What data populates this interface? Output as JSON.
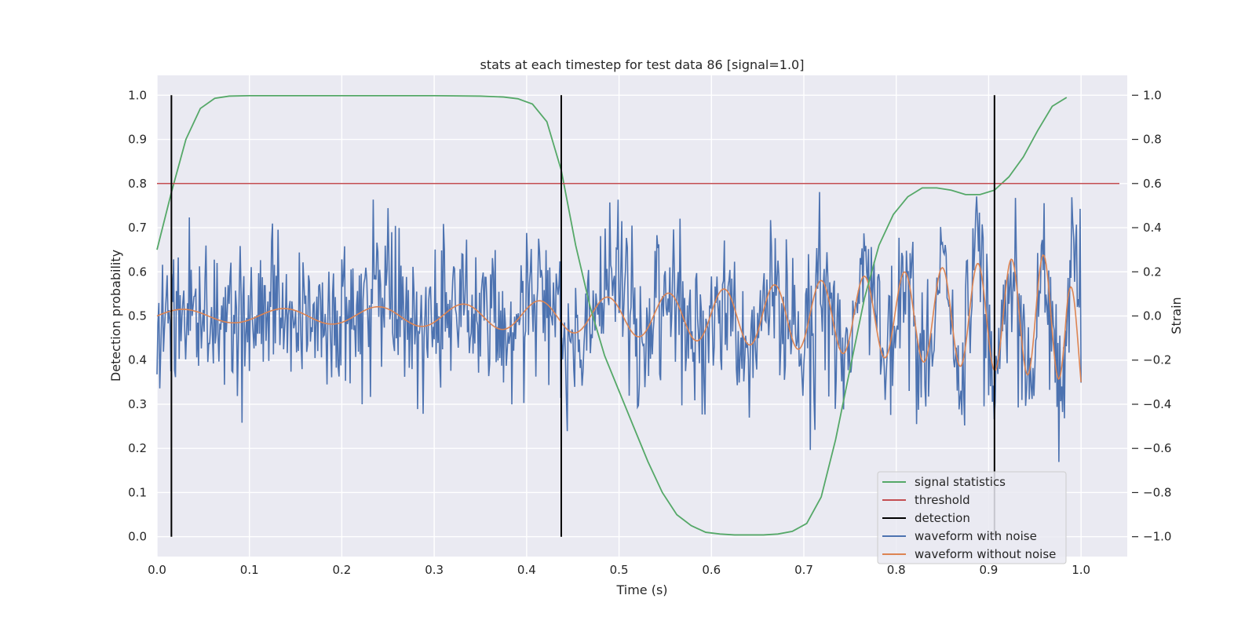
{
  "chart_data": {
    "type": "line",
    "title": "stats at each timestep for test data 86 [signal=1.0]",
    "xlabel": "Time (s)",
    "ylabel_left": "Detection probability",
    "ylabel_right": "Strain",
    "xlim": [
      0.0,
      1.05
    ],
    "ylim_left": [
      -0.045,
      1.045
    ],
    "ylim_right": [
      -1.09,
      1.09
    ],
    "xticks": [
      "0.0",
      "0.1",
      "0.2",
      "0.3",
      "0.4",
      "0.5",
      "0.6",
      "0.7",
      "0.8",
      "0.9",
      "1.0"
    ],
    "yticks_left": [
      "0.0",
      "0.1",
      "0.2",
      "0.3",
      "0.4",
      "0.5",
      "0.6",
      "0.7",
      "0.8",
      "0.9",
      "1.0"
    ],
    "yticks_right": [
      "−1.0",
      "−0.8",
      "−0.6",
      "−0.4",
      "−0.2",
      "0.0",
      "0.2",
      "0.4",
      "0.6",
      "0.8",
      "1.0"
    ],
    "grid": true,
    "legend_position": "lower-right",
    "legend": [
      {
        "label": "signal statistics",
        "color": "#55a868"
      },
      {
        "label": "threshold",
        "color": "#c44e52"
      },
      {
        "label": "detection",
        "color": "#000000"
      },
      {
        "label": "waveform with noise",
        "color": "#4c72b0"
      },
      {
        "label": "waveform without noise",
        "color": "#dd8452"
      }
    ],
    "signal_statistics": {
      "color": "#55a868",
      "x": [
        0.0,
        0.0156,
        0.0313,
        0.0469,
        0.0625,
        0.0781,
        0.1,
        0.15,
        0.2,
        0.25,
        0.3,
        0.35,
        0.375,
        0.3906,
        0.4063,
        0.4219,
        0.4375,
        0.4531,
        0.4688,
        0.4844,
        0.5,
        0.5156,
        0.5313,
        0.5469,
        0.5625,
        0.5781,
        0.5938,
        0.6094,
        0.625,
        0.6406,
        0.6563,
        0.6719,
        0.6875,
        0.7031,
        0.7188,
        0.7344,
        0.75,
        0.7656,
        0.7813,
        0.7969,
        0.8125,
        0.8281,
        0.8438,
        0.8594,
        0.875,
        0.8906,
        0.9063,
        0.9219,
        0.9375,
        0.9531,
        0.9688,
        0.9844
      ],
      "y": [
        0.65,
        0.78,
        0.9,
        0.97,
        0.993,
        0.998,
        0.999,
        0.999,
        0.999,
        0.999,
        0.999,
        0.998,
        0.996,
        0.992,
        0.98,
        0.94,
        0.83,
        0.66,
        0.52,
        0.41,
        0.33,
        0.25,
        0.17,
        0.1,
        0.05,
        0.025,
        0.01,
        0.006,
        0.004,
        0.004,
        0.004,
        0.006,
        0.012,
        0.03,
        0.09,
        0.22,
        0.38,
        0.54,
        0.66,
        0.73,
        0.77,
        0.79,
        0.79,
        0.785,
        0.775,
        0.775,
        0.785,
        0.815,
        0.86,
        0.92,
        0.975,
        0.995
      ]
    },
    "threshold": {
      "value": 0.8,
      "color": "#c44e52"
    },
    "detections": {
      "x": [
        0.0156,
        0.4375,
        0.9063
      ],
      "color": "#000000"
    },
    "waveform_without_noise": {
      "color": "#dd8452",
      "t_start": 0.0,
      "t_end": 1.0,
      "amplitude_start": 0.03,
      "amplitude_end": 0.3,
      "phase_offset": 0.0
    },
    "waveform_with_noise": {
      "color": "#4c72b0",
      "t_start": 0.0,
      "t_end": 1.0,
      "noise_amplitude": 0.33,
      "ymin": -1.0,
      "ymax": 1.0
    }
  }
}
